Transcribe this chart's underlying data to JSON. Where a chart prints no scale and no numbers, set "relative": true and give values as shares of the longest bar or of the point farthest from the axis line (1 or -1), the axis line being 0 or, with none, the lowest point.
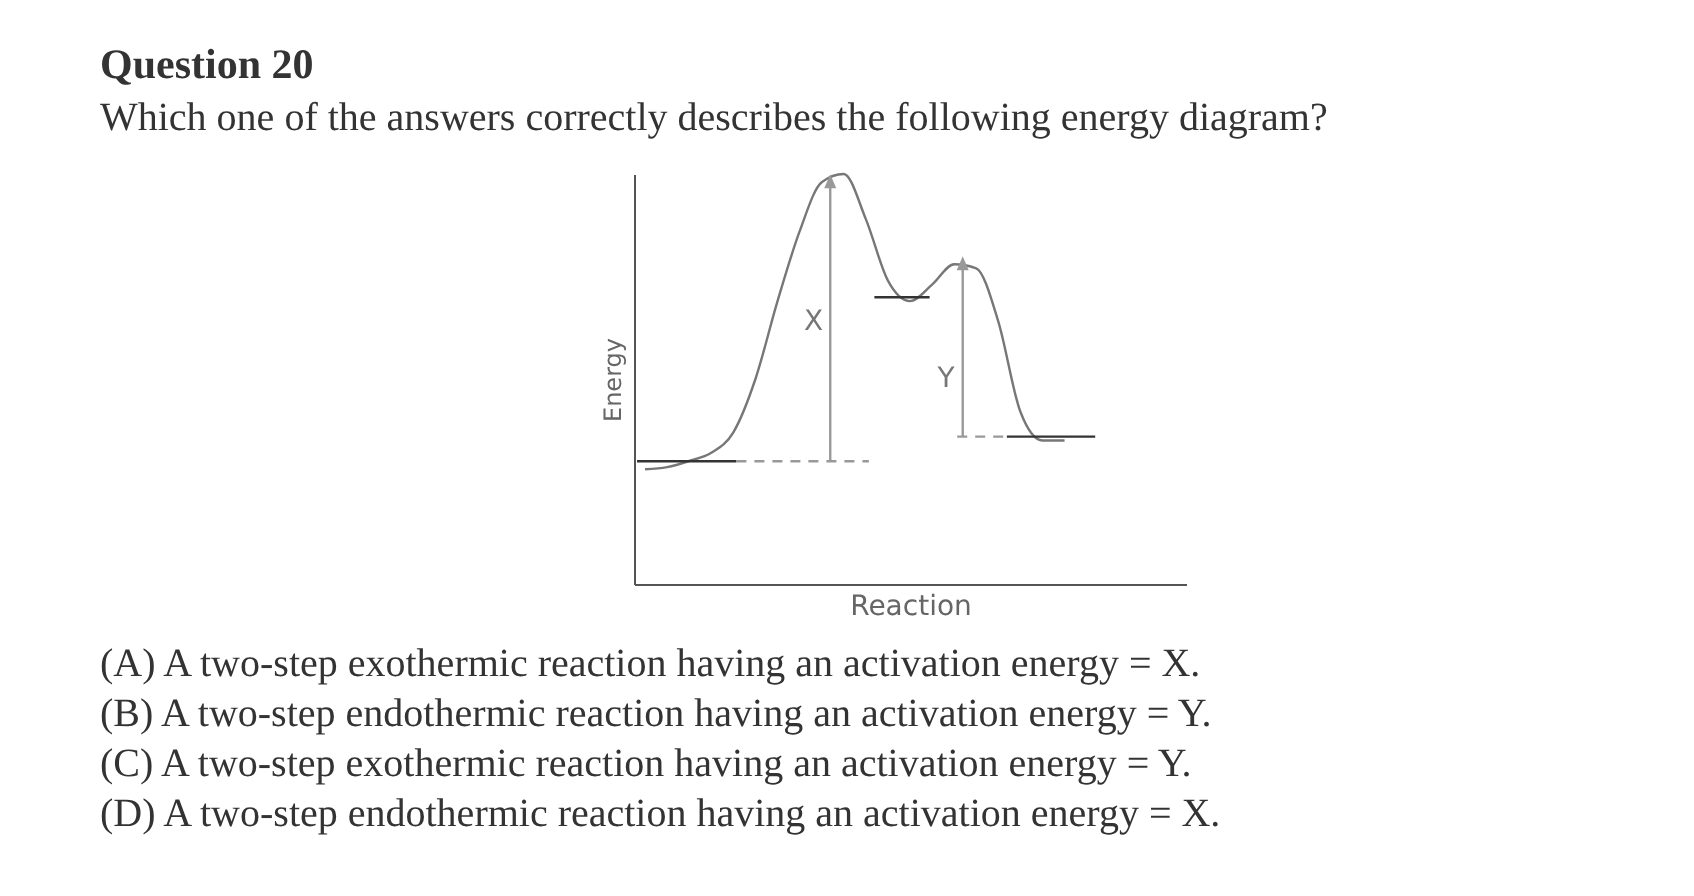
{
  "chart_data": {
    "type": "line",
    "title": "Question 20",
    "subtitle": "Which one of the answers correctly describes the following energy diagram?",
    "xlabel": "Reaction",
    "ylabel": "Energy",
    "relative": true,
    "tick_labels": false,
    "categories": [
      null,
      null,
      null,
      null,
      null,
      null,
      null,
      null,
      null,
      null,
      null,
      null,
      null,
      null,
      null,
      null,
      null,
      null,
      null,
      null,
      null,
      null,
      null,
      null,
      null
    ],
    "series": [
      {
        "color": "#777777",
        "values": [
          0.28,
          0.285,
          0.3,
          0.32,
          0.37,
          0.5,
          0.69,
          0.86,
          0.98,
          1,
          0.89,
          0.74,
          0.69,
          0.73,
          0.78,
          0.77,
          0.64,
          0.42,
          0.35,
          0.35,
          null,
          null,
          null,
          null,
          null
        ]
      }
    ],
    "annotations": [
      "X",
      "Y",
      "(A) A two-step exothermic reaction having an activation energy = X.",
      "(B) A two-step endothermic reaction having an activation energy = Y.",
      "(C) A two-step exothermic reaction having an activation energy = Y.",
      "(D) A two-step endothermic reaction having an activation energy = X."
    ]
  }
}
